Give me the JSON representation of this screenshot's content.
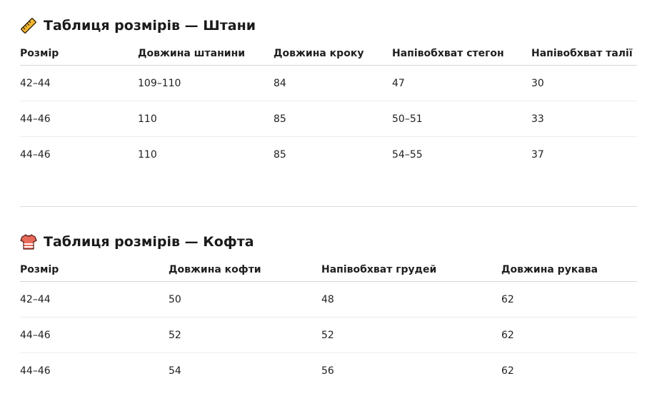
{
  "pants": {
    "icon": "ruler-icon",
    "title": "Таблиця розмірів — Штани",
    "headers": [
      "Розмір",
      "Довжина штанини",
      "Довжина кроку",
      "Напівобхват стегон",
      "Напівобхват талії"
    ],
    "rows": [
      [
        "42–44",
        "109–110",
        "84",
        "47",
        "30"
      ],
      [
        "44–46",
        "110",
        "85",
        "50–51",
        "33"
      ],
      [
        "44–46",
        "110",
        "85",
        "54–55",
        "37"
      ]
    ]
  },
  "sweater": {
    "icon": "shirt-icon",
    "title": "Таблиця розмірів — Кофта",
    "headers": [
      "Розмір",
      "Довжина кофти",
      "Напівобхват грудей",
      "Довжина рукава"
    ],
    "rows": [
      [
        "42–44",
        "50",
        "48",
        "62"
      ],
      [
        "44–46",
        "52",
        "52",
        "62"
      ],
      [
        "44–46",
        "54",
        "56",
        "62"
      ]
    ]
  }
}
